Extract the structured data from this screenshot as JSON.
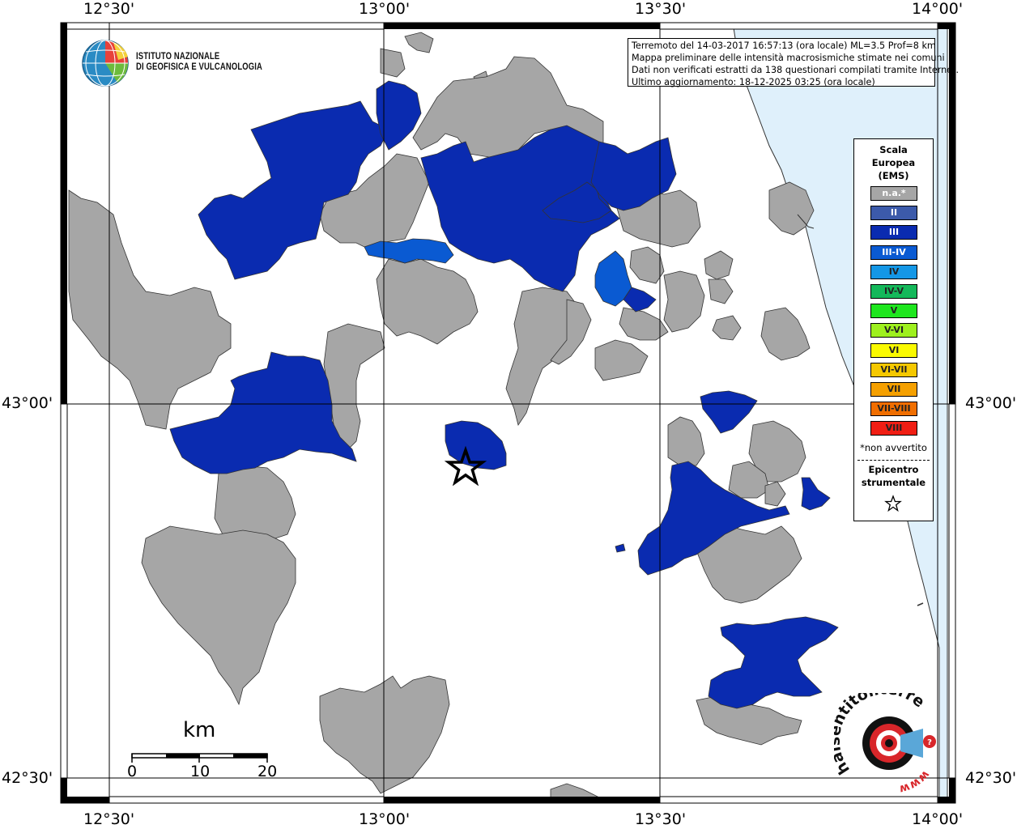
{
  "map": {
    "lon_labels": [
      "12°30'",
      "13°00'",
      "13°30'",
      "14°00'"
    ],
    "lat_labels": [
      "43°00'",
      "42°30'"
    ]
  },
  "info": {
    "line1": "Terremoto del 14-03-2017 16:57:13 (ora locale) ML=3.5 Prof=8 km",
    "line2": "Mappa preliminare delle intensità macrosismiche stimate nei comuni",
    "line3": "Dati non verificati estratti da 138 questionari compilati tramite Internet.",
    "line4": "Ultimo aggiornamento: 18-12-2025 03:25 (ora locale)"
  },
  "logo": {
    "line1": "ISTITUTO NAZIONALE",
    "line2": "DI GEOFISICA E VULCANOLOGIA"
  },
  "legend": {
    "title1": "Scala",
    "title2": "Europea",
    "title3": "(EMS)",
    "items": [
      {
        "label": "n.a.*",
        "color": "#a6a6a6"
      },
      {
        "label": "II",
        "color": "#3c5aaa"
      },
      {
        "label": "III",
        "color": "#0a2bb0"
      },
      {
        "label": "III-IV",
        "color": "#0a5ad2"
      },
      {
        "label": "IV",
        "color": "#1497e6"
      },
      {
        "label": "IV-V",
        "color": "#14b85a"
      },
      {
        "label": "V",
        "color": "#1ee61e"
      },
      {
        "label": "V-VI",
        "color": "#9ef01e"
      },
      {
        "label": "VI",
        "color": "#fafa00"
      },
      {
        "label": "VI-VII",
        "color": "#f5c800"
      },
      {
        "label": "VII",
        "color": "#f5a000"
      },
      {
        "label": "VII-VIII",
        "color": "#f06e00"
      },
      {
        "label": "VIII",
        "color": "#f01e14"
      }
    ],
    "note": "*non avvertito",
    "epicenter1": "Epicentro",
    "epicenter2": "strumentale"
  },
  "scalebar": {
    "unit": "km",
    "labels": [
      "0",
      "10",
      "20"
    ]
  },
  "hsi": {
    "text": "haisentitoilterremoto.it",
    "www": "www."
  },
  "colors": {
    "sea": "#dff0fb",
    "na": "#a6a6a6",
    "iii": "#0a2bb0",
    "iii_iv": "#0a5ad2"
  }
}
